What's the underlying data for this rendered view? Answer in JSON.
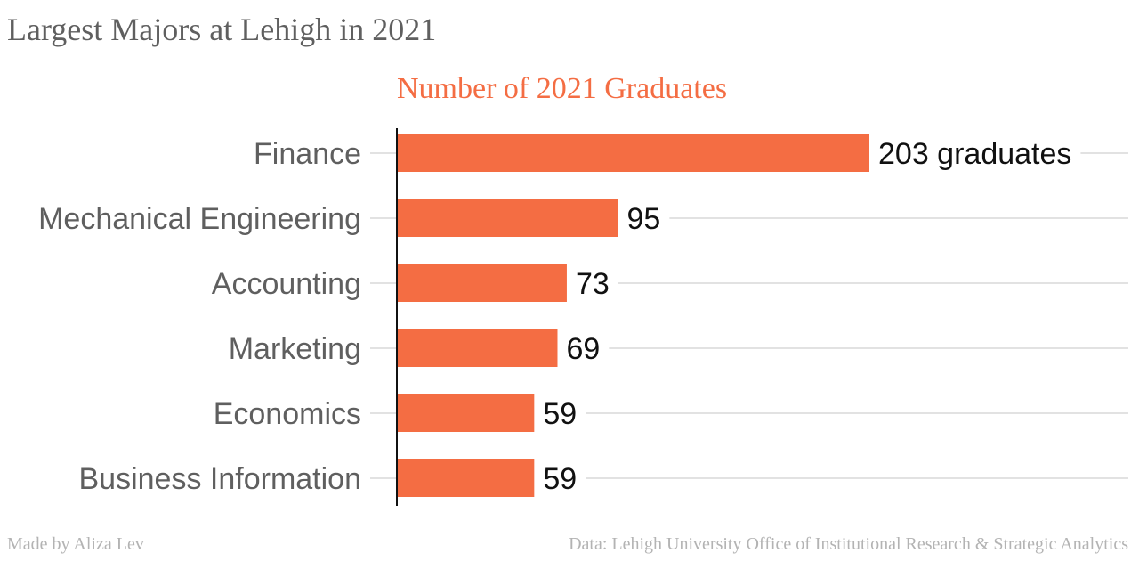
{
  "title": "Largest Majors at Lehigh in 2021",
  "footer": {
    "credit": "Made by Aliza Lev",
    "source": "Data: Lehigh University Office of Institutional Research & Strategic Analytics"
  },
  "colors": {
    "bar": "#f46d43",
    "subtitle": "#f46d43",
    "title": "#5f5f5f",
    "category_label": "#5f5f5f",
    "value_label": "#111111",
    "gridline": "#d9d9d9",
    "footer": "#b3b3b3"
  },
  "chart_data": {
    "type": "bar",
    "orientation": "horizontal",
    "title": "Number of 2021 Graduates",
    "categories": [
      "Finance",
      "Mechanical Engineering",
      "Accounting",
      "Marketing",
      "Economics",
      "Business Information"
    ],
    "values": [
      203,
      95,
      73,
      69,
      59,
      59
    ],
    "value_labels": [
      "203 graduates",
      "95",
      "73",
      "69",
      "59",
      "59"
    ],
    "xlim": [
      0,
      203
    ],
    "grid": true,
    "legend": "none"
  }
}
